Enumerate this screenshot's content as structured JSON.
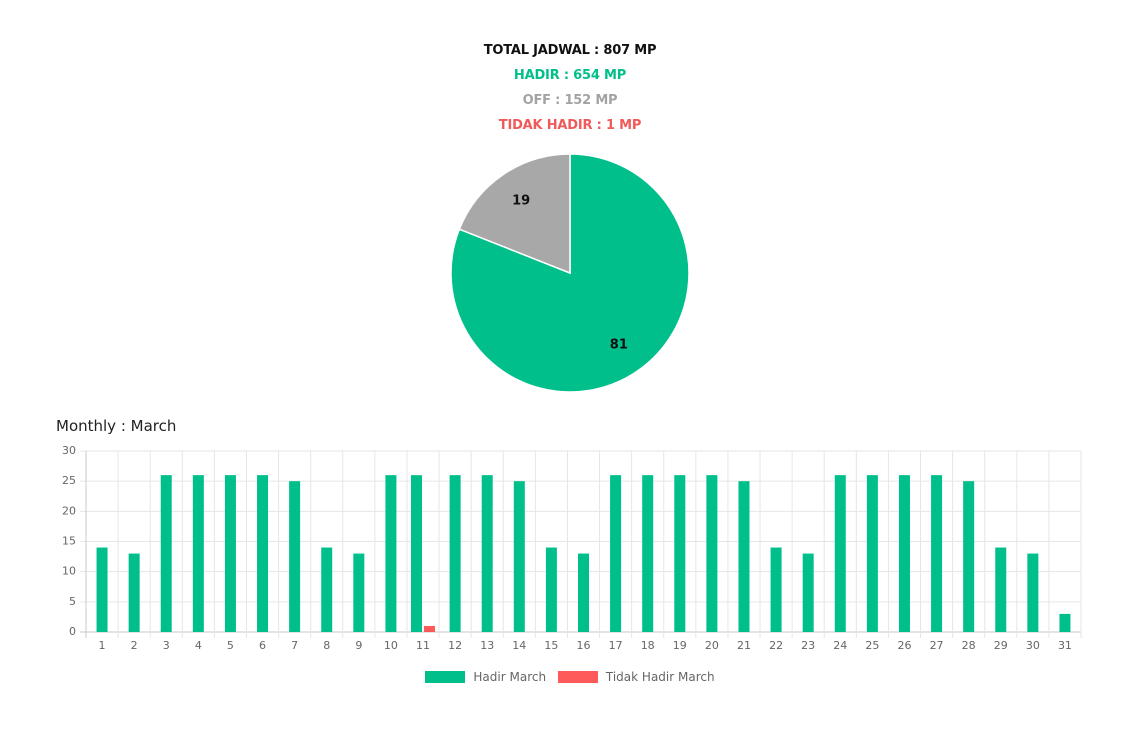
{
  "summary": {
    "total": "TOTAL JADWAL : 807 MP",
    "hadir": "HADIR : 654 MP",
    "off": "OFF : 152 MP",
    "tidak_hadir": "TIDAK HADIR : 1 MP"
  },
  "colors": {
    "hadir": "#00bf8a",
    "off": "#a8a8a8",
    "tidak_hadir": "#ff5a5a"
  },
  "monthly_title": "Monthly : March",
  "legend": {
    "hadir": "Hadir March",
    "tidak_hadir": "Tidak Hadir March"
  },
  "chart_data": [
    {
      "type": "pie",
      "slices": [
        {
          "label": "HADIR",
          "value": 81,
          "color": "#00bf8a"
        },
        {
          "label": "OFF",
          "value": 19,
          "color": "#a8a8a8"
        }
      ],
      "data_labels": [
        "81",
        "19"
      ]
    },
    {
      "type": "bar",
      "title": "Monthly : March",
      "categories": [
        "1",
        "2",
        "3",
        "4",
        "5",
        "6",
        "7",
        "8",
        "9",
        "10",
        "11",
        "12",
        "13",
        "14",
        "15",
        "16",
        "17",
        "18",
        "19",
        "20",
        "21",
        "22",
        "23",
        "24",
        "25",
        "26",
        "27",
        "28",
        "29",
        "30",
        "31"
      ],
      "series": [
        {
          "name": "Hadir March",
          "color": "#00bf8a",
          "values": [
            14,
            13,
            26,
            26,
            26,
            26,
            25,
            14,
            13,
            26,
            26,
            26,
            26,
            25,
            14,
            13,
            26,
            26,
            26,
            26,
            25,
            14,
            13,
            26,
            26,
            26,
            26,
            25,
            14,
            13,
            3
          ]
        },
        {
          "name": "Tidak Hadir March",
          "color": "#ff5a5a",
          "values": [
            0,
            0,
            0,
            0,
            0,
            0,
            0,
            0,
            0,
            0,
            1,
            0,
            0,
            0,
            0,
            0,
            0,
            0,
            0,
            0,
            0,
            0,
            0,
            0,
            0,
            0,
            0,
            0,
            0,
            0,
            0
          ]
        }
      ],
      "ylim": [
        0,
        30
      ],
      "yticks": [
        0,
        5,
        10,
        15,
        20,
        25,
        30
      ],
      "grid": true,
      "legend_position": "bottom"
    }
  ]
}
